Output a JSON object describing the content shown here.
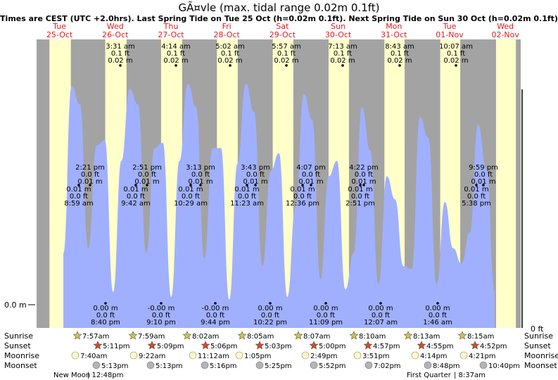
{
  "title": "GÃ¤vle (max. tidal range 0.02m 0.1ft)",
  "subtitle": "Times are CEST (UTC +2.0hrs). Last Spring Tide on Tue 25 Oct (h=0.02m 0.1ft). Next Spring Tide on Sun 30 Oct (h=0.02m 0.1ft)",
  "colors": {
    "night": "#a3a3a3",
    "day": "#ffffc9",
    "water": "#a0b0ff",
    "day_label": "#e31a1c",
    "sun_star": "#d4c24a",
    "sunset_star": "#d24a2a",
    "moonrise": "#fffbc4",
    "moonset": "#b4b4b4"
  },
  "chart_data": {
    "type": "area",
    "days": [
      {
        "dow": "Tue",
        "date": "25-Oct"
      },
      {
        "dow": "Wed",
        "date": "26-Oct"
      },
      {
        "dow": "Thu",
        "date": "27-Oct"
      },
      {
        "dow": "Fri",
        "date": "28-Oct"
      },
      {
        "dow": "Sat",
        "date": "29-Oct"
      },
      {
        "dow": "Sun",
        "date": "30-Oct"
      },
      {
        "dow": "Mon",
        "date": "31-Oct"
      },
      {
        "dow": "Tue",
        "date": "01-Nov"
      },
      {
        "dow": "Wed",
        "date": "02-Nov"
      }
    ],
    "y_left_label": "0.0 m",
    "y_right_label": "0 ft",
    "high_tides": [
      {
        "time": "3:31 am",
        "ft": "0.1 ft",
        "m": "0.02 m"
      },
      {
        "time": "4:14 am",
        "ft": "0.1 ft",
        "m": "0.02 m"
      },
      {
        "time": "5:02 am",
        "ft": "0.1 ft",
        "m": "0.02 m"
      },
      {
        "time": "5:57 am",
        "ft": "0.1 ft",
        "m": "0.02 m"
      },
      {
        "time": "7:13 am",
        "ft": "0.1 ft",
        "m": "0.02 m"
      },
      {
        "time": "8:43 am",
        "ft": "0.1 ft",
        "m": "0.02 m"
      },
      {
        "time": "10:07 am",
        "ft": "0.1 ft",
        "m": "0.02 m"
      }
    ],
    "second_highs": [
      {
        "time": "2:21 pm",
        "ft": "0.0 ft",
        "m": "0.01 m"
      },
      {
        "time": "2:51 pm",
        "ft": "0.0 ft",
        "m": "0.01 m"
      },
      {
        "time": "3:13 pm",
        "ft": "0.0 ft",
        "m": "0.01 m"
      },
      {
        "time": "3:43 pm",
        "ft": "0.0 ft",
        "m": "0.01 m"
      },
      {
        "time": "4:07 pm",
        "ft": "0.0 ft",
        "m": "0.01 m"
      },
      {
        "time": "4:22 pm",
        "ft": "0.0 ft",
        "m": "0.01 m"
      },
      {
        "time": "9:59 pm",
        "ft": "0.0 ft",
        "m": "0.01 m"
      }
    ],
    "mid_lows": [
      {
        "time": "8:59 am",
        "ft": "0.0 ft",
        "m": "0.01 m"
      },
      {
        "time": "9:42 am",
        "ft": "0.0 ft",
        "m": "0.01 m"
      },
      {
        "time": "10:29 am",
        "ft": "0.0 ft",
        "m": "0.01 m"
      },
      {
        "time": "11:23 am",
        "ft": "0.0 ft",
        "m": "0.01 m"
      },
      {
        "time": "12:36 pm",
        "ft": "0.0 ft",
        "m": "0.01 m"
      },
      {
        "time": "2:51 pm",
        "ft": "0.0 ft",
        "m": "0.01 m"
      },
      {
        "time": "5:38 pm",
        "ft": "0.0 ft",
        "m": "0.01 m"
      }
    ],
    "low_tides": [
      {
        "time": "8:40 pm",
        "ft": "0.0 ft",
        "m": "0.00 m"
      },
      {
        "time": "9:10 pm",
        "ft": "0.0 ft",
        "m": "-0.00 m"
      },
      {
        "time": "9:44 pm",
        "ft": "0.0 ft",
        "m": "-0.00 m"
      },
      {
        "time": "10:22 pm",
        "ft": "0.0 ft",
        "m": "0.00 m"
      },
      {
        "time": "11:09 pm",
        "ft": "0.0 ft",
        "m": "0.00 m"
      },
      {
        "time": "12:07 am",
        "ft": "0.0 ft",
        "m": "0.00 m"
      },
      {
        "time": "1:46 am",
        "ft": "0.0 ft",
        "m": "0.00 m"
      }
    ],
    "tide_curve_relative": [
      0.2,
      0.85,
      0.78,
      0.22,
      0.62,
      0.64,
      0.05,
      0.56,
      0.84,
      0.78,
      0.2,
      0.61,
      0.63,
      0.03,
      0.56,
      0.86,
      0.77,
      0.18,
      0.61,
      0.61,
      0.02,
      0.55,
      0.86,
      0.75,
      0.15,
      0.52,
      0.59,
      0.03,
      0.38,
      0.82,
      0.72,
      0.1,
      0.5,
      0.56,
      0.06,
      0.2,
      0.77,
      0.6,
      0.08,
      0.5,
      0.41,
      0.15,
      0.14,
      0.73,
      0.65,
      0.08,
      0.4,
      0.22,
      0.16,
      0.28,
      0.7,
      0.53,
      0.05
    ]
  },
  "rows": {
    "labels": [
      "Sunrise",
      "Sunset",
      "Moonrise",
      "Moonset"
    ],
    "sunrise": [
      "7:57am",
      "7:59am",
      "8:02am",
      "8:05am",
      "8:07am",
      "8:10am",
      "8:13am",
      "8:15am"
    ],
    "sunset": [
      "5:11pm",
      "5:09pm",
      "5:06pm",
      "5:03pm",
      "5:00pm",
      "4:57pm",
      "4:55pm",
      "4:52pm"
    ],
    "moonrise": [
      "7:40am",
      "9:22am",
      "11:12am",
      "1:05pm",
      "2:49pm",
      "3:51pm",
      "4:14pm",
      "4:21pm"
    ],
    "moonset": [
      "5:13pm",
      "5:13pm",
      "5:16pm",
      "5:25pm",
      "5:52pm",
      "7:02pm",
      "8:48pm",
      "10:40pm"
    ],
    "phases": [
      {
        "name": "New Moon",
        "time": "12:48pm"
      },
      {
        "name": "First Quarter",
        "time": "8:37am"
      }
    ]
  }
}
